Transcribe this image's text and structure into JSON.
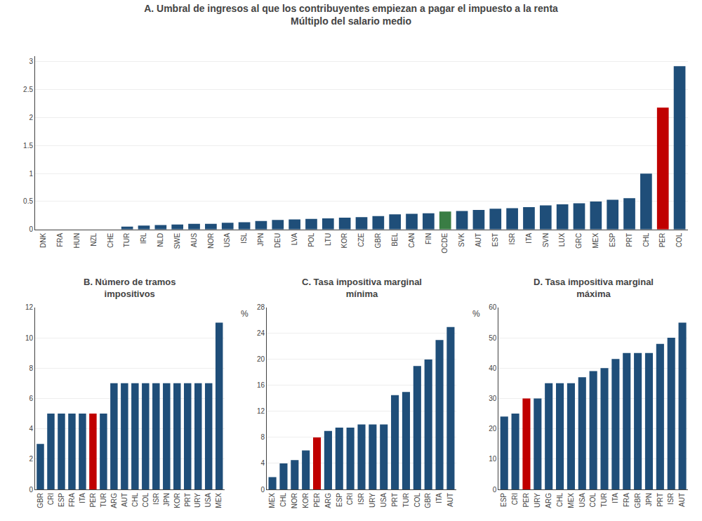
{
  "chart_data": [
    {
      "type": "bar",
      "title": "A. Umbral de ingresos al que los contribuyentes empiezan a pagar el impuesto a la renta",
      "subtitle": "Múltiplo del salario medio",
      "categories": [
        "DNK",
        "FRA",
        "HUN",
        "NZL",
        "CHE",
        "TUR",
        "IRL",
        "NLD",
        "SWE",
        "AUS",
        "NOR",
        "USA",
        "ISL",
        "JPN",
        "DEU",
        "LVA",
        "POL",
        "LTU",
        "KOR",
        "CZE",
        "GBR",
        "BEL",
        "CAN",
        "FIN",
        "OCDE",
        "SVK",
        "AUT",
        "EST",
        "ISR",
        "ITA",
        "SVN",
        "LUX",
        "GRC",
        "MEX",
        "ESP",
        "PRT",
        "CHL",
        "PER",
        "COL"
      ],
      "values": [
        0.0,
        0.0,
        0.0,
        0.0,
        0.0,
        0.05,
        0.07,
        0.08,
        0.09,
        0.1,
        0.1,
        0.12,
        0.13,
        0.15,
        0.17,
        0.18,
        0.19,
        0.2,
        0.21,
        0.22,
        0.24,
        0.27,
        0.28,
        0.29,
        0.32,
        0.33,
        0.35,
        0.37,
        0.38,
        0.4,
        0.43,
        0.45,
        0.47,
        0.5,
        0.53,
        0.56,
        1.0,
        2.18,
        2.92
      ],
      "colors": [
        "#1f4e79",
        "#1f4e79",
        "#1f4e79",
        "#1f4e79",
        "#1f4e79",
        "#1f4e79",
        "#1f4e79",
        "#1f4e79",
        "#1f4e79",
        "#1f4e79",
        "#1f4e79",
        "#1f4e79",
        "#1f4e79",
        "#1f4e79",
        "#1f4e79",
        "#1f4e79",
        "#1f4e79",
        "#1f4e79",
        "#1f4e79",
        "#1f4e79",
        "#1f4e79",
        "#1f4e79",
        "#1f4e79",
        "#1f4e79",
        "#3a7d44",
        "#1f4e79",
        "#1f4e79",
        "#1f4e79",
        "#1f4e79",
        "#1f4e79",
        "#1f4e79",
        "#1f4e79",
        "#1f4e79",
        "#1f4e79",
        "#1f4e79",
        "#1f4e79",
        "#1f4e79",
        "#c00000",
        "#1f4e79"
      ],
      "ylim": [
        0,
        3.1
      ],
      "yticks": [
        0,
        0.5,
        1,
        1.5,
        2,
        2.5,
        3
      ],
      "grid": true
    },
    {
      "type": "bar",
      "title": "B. Número de tramos\nimpositivos",
      "categories": [
        "GBR",
        "CRI",
        "ESP",
        "FRA",
        "ITA",
        "PER",
        "TUR",
        "ARG",
        "AUT",
        "CHL",
        "COL",
        "ISR",
        "JPN",
        "KOR",
        "PRT",
        "URY",
        "USA",
        "MEX"
      ],
      "values": [
        3,
        5,
        5,
        5,
        5,
        5,
        5,
        7,
        7,
        7,
        7,
        7,
        7,
        7,
        7,
        7,
        7,
        11
      ],
      "colors": [
        "#1f4e79",
        "#1f4e79",
        "#1f4e79",
        "#1f4e79",
        "#1f4e79",
        "#c00000",
        "#1f4e79",
        "#1f4e79",
        "#1f4e79",
        "#1f4e79",
        "#1f4e79",
        "#1f4e79",
        "#1f4e79",
        "#1f4e79",
        "#1f4e79",
        "#1f4e79",
        "#1f4e79",
        "#1f4e79"
      ],
      "ylim": [
        0,
        12
      ],
      "yticks": [
        0,
        2,
        4,
        6,
        8,
        10,
        12
      ],
      "grid": true
    },
    {
      "type": "bar",
      "title": "C. Tasa impositiva marginal\nmínima",
      "ylabel": "%",
      "categories": [
        "MEX",
        "CHL",
        "NOR",
        "KOR",
        "PER",
        "ARG",
        "ESP",
        "CRI",
        "ISR",
        "URY",
        "USA",
        "PRT",
        "TUR",
        "COL",
        "GBR",
        "ITA",
        "AUT"
      ],
      "values": [
        1.9,
        4.0,
        4.5,
        6.0,
        8.0,
        9.0,
        9.5,
        9.5,
        10.0,
        10.0,
        10.0,
        14.5,
        15.0,
        19.0,
        20.0,
        23.0,
        25.0
      ],
      "colors": [
        "#1f4e79",
        "#1f4e79",
        "#1f4e79",
        "#1f4e79",
        "#c00000",
        "#1f4e79",
        "#1f4e79",
        "#1f4e79",
        "#1f4e79",
        "#1f4e79",
        "#1f4e79",
        "#1f4e79",
        "#1f4e79",
        "#1f4e79",
        "#1f4e79",
        "#1f4e79",
        "#1f4e79"
      ],
      "ylim": [
        0,
        28
      ],
      "yticks": [
        0,
        4,
        8,
        12,
        16,
        20,
        24,
        28
      ],
      "grid": true
    },
    {
      "type": "bar",
      "title": "D. Tasa impositiva marginal\nmáxima",
      "ylabel": "%",
      "categories": [
        "ESP",
        "CRI",
        "PER",
        "URY",
        "ARG",
        "CHL",
        "MEX",
        "USA",
        "COL",
        "TUR",
        "ITA",
        "FRA",
        "GBR",
        "JPN",
        "PRT",
        "ISR",
        "AUT"
      ],
      "values": [
        24,
        25,
        30,
        30,
        35,
        35,
        35,
        37,
        39,
        40,
        43,
        45,
        45,
        45,
        48,
        50,
        55
      ],
      "colors": [
        "#1f4e79",
        "#1f4e79",
        "#c00000",
        "#1f4e79",
        "#1f4e79",
        "#1f4e79",
        "#1f4e79",
        "#1f4e79",
        "#1f4e79",
        "#1f4e79",
        "#1f4e79",
        "#1f4e79",
        "#1f4e79",
        "#1f4e79",
        "#1f4e79",
        "#1f4e79",
        "#1f4e79"
      ],
      "ylim": [
        0,
        60
      ],
      "yticks": [
        0,
        10,
        20,
        30,
        40,
        50,
        60
      ],
      "grid": true
    }
  ]
}
